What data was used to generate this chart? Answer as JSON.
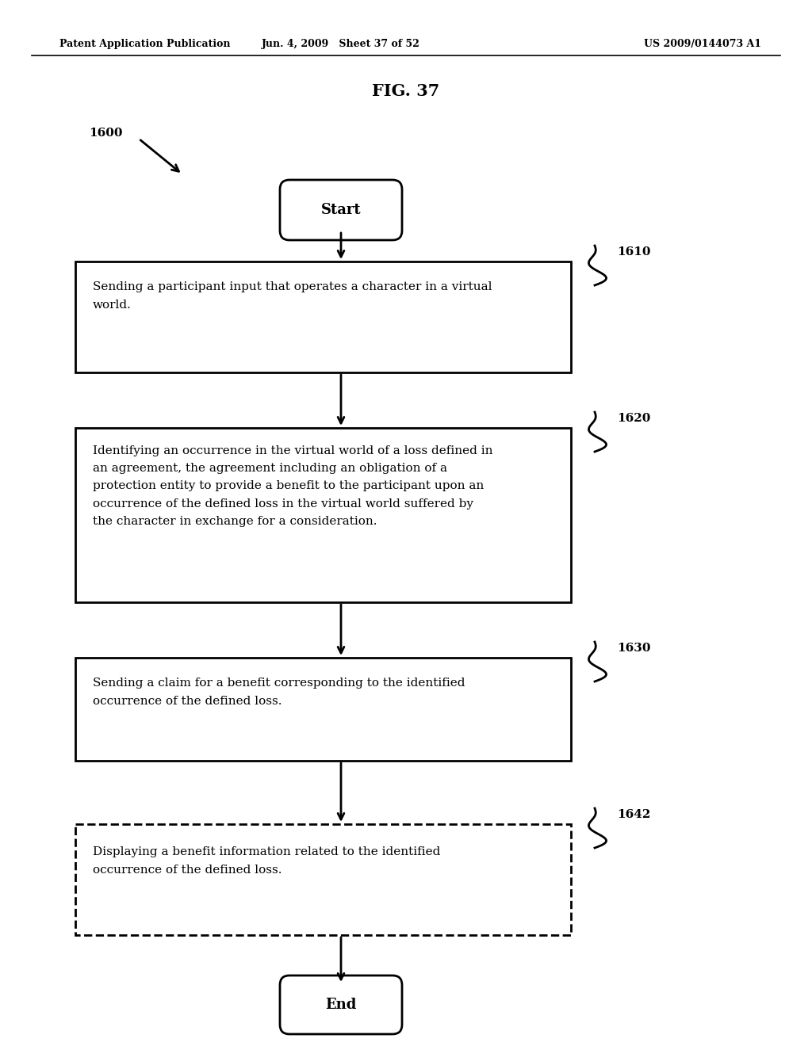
{
  "fig_title": "FIG. 37",
  "header_left": "Patent Application Publication",
  "header_center": "Jun. 4, 2009   Sheet 37 of 52",
  "header_right": "US 2009/0144073 A1",
  "flow_label": "1600",
  "start_label": "Start",
  "end_label": "End",
  "box1_label": "1610",
  "box1_text": "Sending a participant input that operates a character in a virtual\nworld.",
  "box2_label": "1620",
  "box2_text": "Identifying an occurrence in the virtual world of a loss defined in\nan agreement, the agreement including an obligation of a\nprotection entity to provide a benefit to the participant upon an\noccurrence of the defined loss in the virtual world suffered by\nthe character in exchange for a consideration.",
  "box3_label": "1630",
  "box3_text": "Sending a claim for a benefit corresponding to the identified\noccurrence of the defined loss.",
  "box4_label": "1642",
  "box4_text": "Displaying a benefit information related to the identified\noccurrence of the defined loss.",
  "background_color": "#ffffff",
  "text_color": "#000000"
}
